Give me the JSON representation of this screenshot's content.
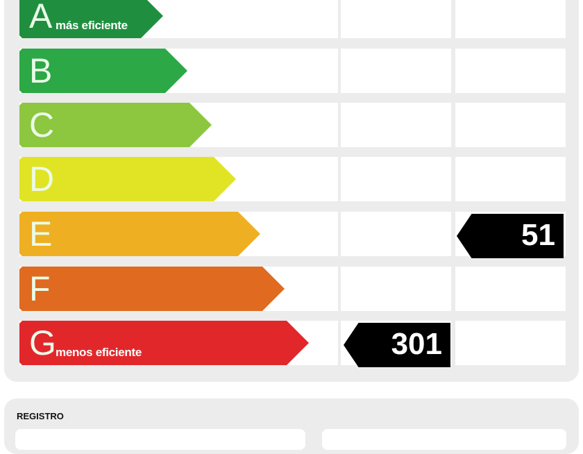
{
  "classes": [
    {
      "letter": "A",
      "sub": "más eficiente",
      "color": "#1f8f3f"
    },
    {
      "letter": "B",
      "sub": "",
      "color": "#2ca846"
    },
    {
      "letter": "C",
      "sub": "",
      "color": "#8dc63f"
    },
    {
      "letter": "D",
      "sub": "",
      "color": "#e1e424"
    },
    {
      "letter": "E",
      "sub": "",
      "color": "#efaf22"
    },
    {
      "letter": "F",
      "sub": "",
      "color": "#e06a1f"
    },
    {
      "letter": "G",
      "sub": "menos eficiente",
      "color": "#e2272b"
    }
  ],
  "ratings": [
    {
      "value": "51",
      "class": "E",
      "column": 2
    },
    {
      "value": "301",
      "class": "G",
      "column": 1
    }
  ],
  "registro": {
    "label": "REGISTRO"
  }
}
